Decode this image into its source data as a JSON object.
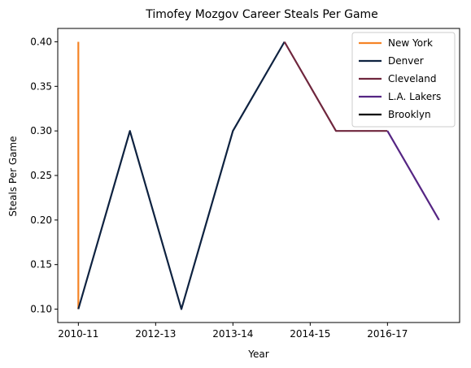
{
  "chart_data": {
    "type": "line",
    "title": "Timofey Mozgov Career Steals Per Game",
    "xlabel": "Year",
    "ylabel": "Steals Per Game",
    "x_positions": [
      0,
      1,
      2,
      3,
      4,
      5,
      6,
      7
    ],
    "xticks": [
      {
        "pos": 0,
        "label": "2010-11"
      },
      {
        "pos": 1.5,
        "label": "2012-13"
      },
      {
        "pos": 3,
        "label": "2013-14"
      },
      {
        "pos": 4.5,
        "label": "2014-15"
      },
      {
        "pos": 6,
        "label": "2016-17"
      }
    ],
    "yticks": [
      0.1,
      0.15,
      0.2,
      0.25,
      0.3,
      0.35,
      0.4
    ],
    "xlim": [
      -0.4,
      7.4
    ],
    "ylim": [
      0.085,
      0.415
    ],
    "grid": false,
    "legend_position": "top-right",
    "series": [
      {
        "name": "New York",
        "color": "#F58426",
        "points": [
          [
            0,
            0.4
          ],
          [
            0,
            0.1
          ]
        ]
      },
      {
        "name": "Denver",
        "color": "#0E2240",
        "points": [
          [
            0,
            0.1
          ],
          [
            1,
            0.3
          ],
          [
            2,
            0.1
          ],
          [
            3,
            0.3
          ],
          [
            4,
            0.4
          ]
        ]
      },
      {
        "name": "Cleveland",
        "color": "#6F263D",
        "points": [
          [
            4,
            0.4
          ],
          [
            5,
            0.3
          ],
          [
            6,
            0.3
          ]
        ]
      },
      {
        "name": "L.A. Lakers",
        "color": "#552583",
        "points": [
          [
            6,
            0.3
          ],
          [
            7,
            0.2
          ]
        ]
      },
      {
        "name": "Brooklyn",
        "color": "#000000",
        "points": []
      }
    ]
  }
}
